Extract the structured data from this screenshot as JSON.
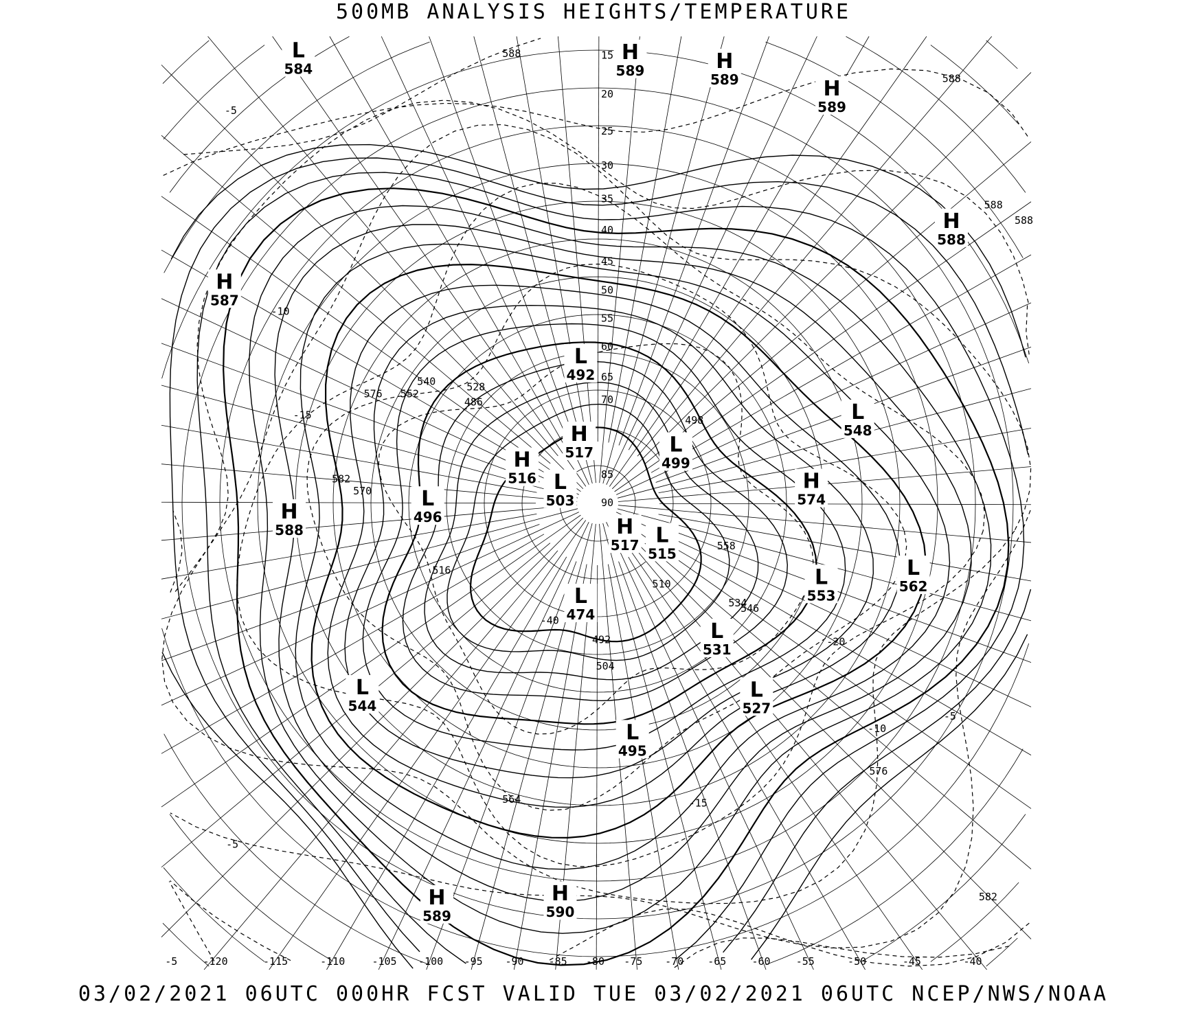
{
  "title": "500MB ANALYSIS  HEIGHTS/TEMPERATURE",
  "footer": "03/02/2021 06UTC 000HR FCST VALID TUE 03/02/2021 06UTC  NCEP/NWS/NOAA",
  "map": {
    "projection": "polar-stereographic",
    "line_color": "#000000",
    "background": "#ffffff",
    "height_contours": "solid lines (dm)",
    "temperature_contours": "dashed lines (C)",
    "longitude_labels": [
      "-5",
      "-120",
      "-115",
      "-110",
      "-105",
      "-100",
      "-95",
      "-90",
      "-85",
      "-80",
      "-75",
      "-70",
      "-65",
      "-60",
      "-55",
      "-50",
      "-45",
      "-40"
    ],
    "latitude_labels": [
      "15",
      "20",
      "25",
      "30",
      "35",
      "40",
      "45",
      "50",
      "55",
      "60",
      "65",
      "70",
      "85",
      "90"
    ],
    "centers": [
      {
        "type": "L",
        "value": "584"
      },
      {
        "type": "H",
        "value": "589"
      },
      {
        "type": "H",
        "value": "589"
      },
      {
        "type": "H",
        "value": "589"
      },
      {
        "type": "H",
        "value": "588"
      },
      {
        "type": "H",
        "value": "587"
      },
      {
        "type": "L",
        "value": "492"
      },
      {
        "type": "L",
        "value": "548"
      },
      {
        "type": "H",
        "value": "517"
      },
      {
        "type": "L",
        "value": "499"
      },
      {
        "type": "H",
        "value": "516"
      },
      {
        "type": "L",
        "value": "503"
      },
      {
        "type": "H",
        "value": "574"
      },
      {
        "type": "L",
        "value": "496"
      },
      {
        "type": "H",
        "value": "588"
      },
      {
        "type": "H",
        "value": "517"
      },
      {
        "type": "L",
        "value": "515"
      },
      {
        "type": "L",
        "value": "553"
      },
      {
        "type": "L",
        "value": "562"
      },
      {
        "type": "L",
        "value": "474"
      },
      {
        "type": "L",
        "value": "531"
      },
      {
        "type": "L",
        "value": "527"
      },
      {
        "type": "L",
        "value": "544"
      },
      {
        "type": "L",
        "value": "495"
      },
      {
        "type": "H",
        "value": "589"
      },
      {
        "type": "H",
        "value": "590"
      }
    ],
    "contour_labels": [
      "588",
      "588",
      "588",
      "582",
      "576",
      "576",
      "570",
      "564",
      "558",
      "552",
      "540",
      "528",
      "516",
      "504",
      "492",
      "486",
      "498",
      "510",
      "534",
      "546",
      "582",
      "588",
      "-5",
      "-10",
      "-15",
      "-20",
      "-40",
      "-5",
      "-10",
      "-15",
      "-5"
    ]
  }
}
